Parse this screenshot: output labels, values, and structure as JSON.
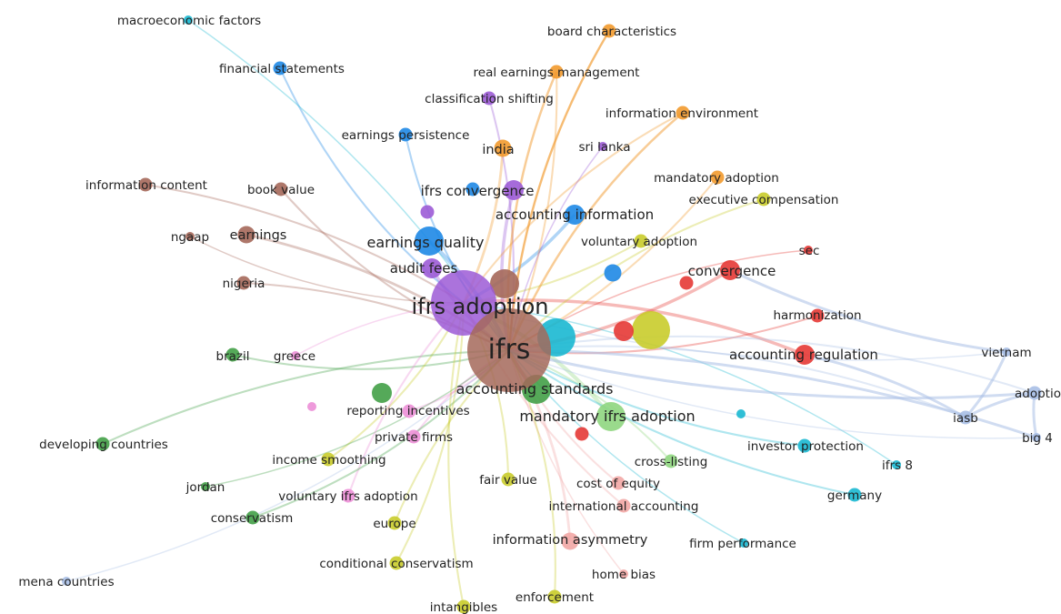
{
  "clusters": {
    "red": "#e53935",
    "green": "#43a047",
    "blue": "#1e88e5",
    "yellow": "#c9cc2b",
    "purple": "#9c5bd6",
    "cyan": "#19b8d2",
    "orange": "#f29a2e",
    "brown": "#a5685a",
    "pink": "#ec8fd7",
    "salmon": "#f2a7a5",
    "lavender": "#a9bfe6",
    "lightgreen": "#8fd67f"
  },
  "nodes": [
    {
      "id": "ifrs",
      "label": "ifrs",
      "cluster": "brown",
      "weight": 10
    },
    {
      "id": "ifrs-adoption",
      "label": "ifrs adoption",
      "cluster": "purple",
      "weight": 9
    },
    {
      "id": "accounting-standards",
      "label": "accounting standards",
      "cluster": "green",
      "weight": 6
    },
    {
      "id": "mandatory-ifrs-adoption",
      "label": "mandatory ifrs adoption",
      "cluster": "lightgreen",
      "weight": 6
    },
    {
      "id": "earnings-quality",
      "label": "earnings quality",
      "cluster": "blue",
      "weight": 6
    },
    {
      "id": "ifrs-convergence",
      "label": "ifrs convergence",
      "cluster": "purple",
      "weight": 5
    },
    {
      "id": "accounting-information",
      "label": "accounting information",
      "cluster": "blue",
      "weight": 5
    },
    {
      "id": "audit-fees",
      "label": "audit fees",
      "cluster": "purple",
      "weight": 5
    },
    {
      "id": "convergence",
      "label": "convergence",
      "cluster": "red",
      "weight": 5
    },
    {
      "id": "accounting-regulation",
      "label": "accounting regulation",
      "cluster": "red",
      "weight": 5
    },
    {
      "id": "harmonization",
      "label": "harmonization",
      "cluster": "red",
      "weight": 3
    },
    {
      "id": "sec",
      "label": "sec",
      "cluster": "red",
      "weight": 2
    },
    {
      "id": "voluntary-adoption",
      "label": "voluntary adoption",
      "cluster": "yellow",
      "weight": 3
    },
    {
      "id": "executive-compensation",
      "label": "executive compensation",
      "cluster": "yellow",
      "weight": 3
    },
    {
      "id": "mandatory-adoption",
      "label": "mandatory adoption",
      "cluster": "orange",
      "weight": 3
    },
    {
      "id": "information-environment",
      "label": "information environment",
      "cluster": "orange",
      "weight": 3
    },
    {
      "id": "real-earnings-management",
      "label": "real earnings management",
      "cluster": "orange",
      "weight": 3
    },
    {
      "id": "board-characteristics",
      "label": "board characteristics",
      "cluster": "orange",
      "weight": 3
    },
    {
      "id": "india",
      "label": "india",
      "cluster": "orange",
      "weight": 4
    },
    {
      "id": "sri-lanka",
      "label": "sri lanka",
      "cluster": "purple",
      "weight": 2
    },
    {
      "id": "classification-shifting",
      "label": "classification shifting",
      "cluster": "purple",
      "weight": 3
    },
    {
      "id": "financial-statements",
      "label": "financial statements",
      "cluster": "blue",
      "weight": 3
    },
    {
      "id": "macroeconomic-factors",
      "label": "macroeconomic factors",
      "cluster": "cyan",
      "weight": 2
    },
    {
      "id": "earnings-persistence",
      "label": "earnings persistence",
      "cluster": "blue",
      "weight": 3
    },
    {
      "id": "information-content",
      "label": "information content",
      "cluster": "brown",
      "weight": 3
    },
    {
      "id": "book-value",
      "label": "book value",
      "cluster": "brown",
      "weight": 3
    },
    {
      "id": "earnings",
      "label": "earnings",
      "cluster": "brown",
      "weight": 4
    },
    {
      "id": "ngaap",
      "label": "ngaap",
      "cluster": "brown",
      "weight": 2
    },
    {
      "id": "nigeria",
      "label": "nigeria",
      "cluster": "brown",
      "weight": 3
    },
    {
      "id": "brazil",
      "label": "brazil",
      "cluster": "green",
      "weight": 3
    },
    {
      "id": "greece",
      "label": "greece",
      "cluster": "pink",
      "weight": 2
    },
    {
      "id": "reporting-incentives",
      "label": "reporting incentives",
      "cluster": "pink",
      "weight": 3
    },
    {
      "id": "private-firms",
      "label": "private firms",
      "cluster": "pink",
      "weight": 3
    },
    {
      "id": "income-smoothing",
      "label": "income smoothing",
      "cluster": "yellow",
      "weight": 3
    },
    {
      "id": "developing-countries",
      "label": "developing countries",
      "cluster": "green",
      "weight": 3
    },
    {
      "id": "jordan",
      "label": "jordan",
      "cluster": "green",
      "weight": 2
    },
    {
      "id": "voluntary-ifrs-adoption",
      "label": "voluntary ifrs adoption",
      "cluster": "pink",
      "weight": 3
    },
    {
      "id": "conservatism",
      "label": "conservatism",
      "cluster": "green",
      "weight": 3
    },
    {
      "id": "europe",
      "label": "europe",
      "cluster": "yellow",
      "weight": 3
    },
    {
      "id": "fair-value",
      "label": "fair value",
      "cluster": "yellow",
      "weight": 3
    },
    {
      "id": "cost-of-equity",
      "label": "cost of equity",
      "cluster": "salmon",
      "weight": 3
    },
    {
      "id": "cross-listing",
      "label": "cross-listing",
      "cluster": "lightgreen",
      "weight": 3
    },
    {
      "id": "international-accounting",
      "label": "international accounting",
      "cluster": "salmon",
      "weight": 3
    },
    {
      "id": "information-asymmetry",
      "label": "information asymmetry",
      "cluster": "salmon",
      "weight": 4
    },
    {
      "id": "firm-performance",
      "label": "firm performance",
      "cluster": "cyan",
      "weight": 2
    },
    {
      "id": "conditional-conservatism",
      "label": "conditional conservatism",
      "cluster": "yellow",
      "weight": 3
    },
    {
      "id": "home-bias",
      "label": "home bias",
      "cluster": "salmon",
      "weight": 2
    },
    {
      "id": "enforcement",
      "label": "enforcement",
      "cluster": "yellow",
      "weight": 3
    },
    {
      "id": "intangibles",
      "label": "intangibles",
      "cluster": "yellow",
      "weight": 3
    },
    {
      "id": "mena-countries",
      "label": "mena countries",
      "cluster": "lavender",
      "weight": 2
    },
    {
      "id": "investor-protection",
      "label": "investor protection",
      "cluster": "cyan",
      "weight": 3
    },
    {
      "id": "ifrs-8",
      "label": "ifrs 8",
      "cluster": "cyan",
      "weight": 2
    },
    {
      "id": "germany",
      "label": "germany",
      "cluster": "cyan",
      "weight": 3
    },
    {
      "id": "iasb",
      "label": "iasb",
      "cluster": "lavender",
      "weight": 3
    },
    {
      "id": "vietnam",
      "label": "vietnam",
      "cluster": "lavender",
      "weight": 2
    },
    {
      "id": "adoption",
      "label": "adoptio",
      "cluster": "lavender",
      "weight": 3
    },
    {
      "id": "big-4",
      "label": "big 4",
      "cluster": "lavender",
      "weight": 2
    }
  ],
  "extra_nodes": [
    {
      "cluster": "cyan",
      "weight": 7
    },
    {
      "cluster": "yellow",
      "weight": 7
    },
    {
      "cluster": "brown",
      "weight": 6
    },
    {
      "cluster": "red",
      "weight": 5
    },
    {
      "cluster": "blue",
      "weight": 4
    },
    {
      "cluster": "red",
      "weight": 3
    },
    {
      "cluster": "purple",
      "weight": 3
    },
    {
      "cluster": "blue",
      "weight": 3
    },
    {
      "cluster": "green",
      "weight": 5
    },
    {
      "cluster": "red",
      "weight": 3
    },
    {
      "cluster": "cyan",
      "weight": 2
    },
    {
      "cluster": "pink",
      "weight": 2
    }
  ]
}
